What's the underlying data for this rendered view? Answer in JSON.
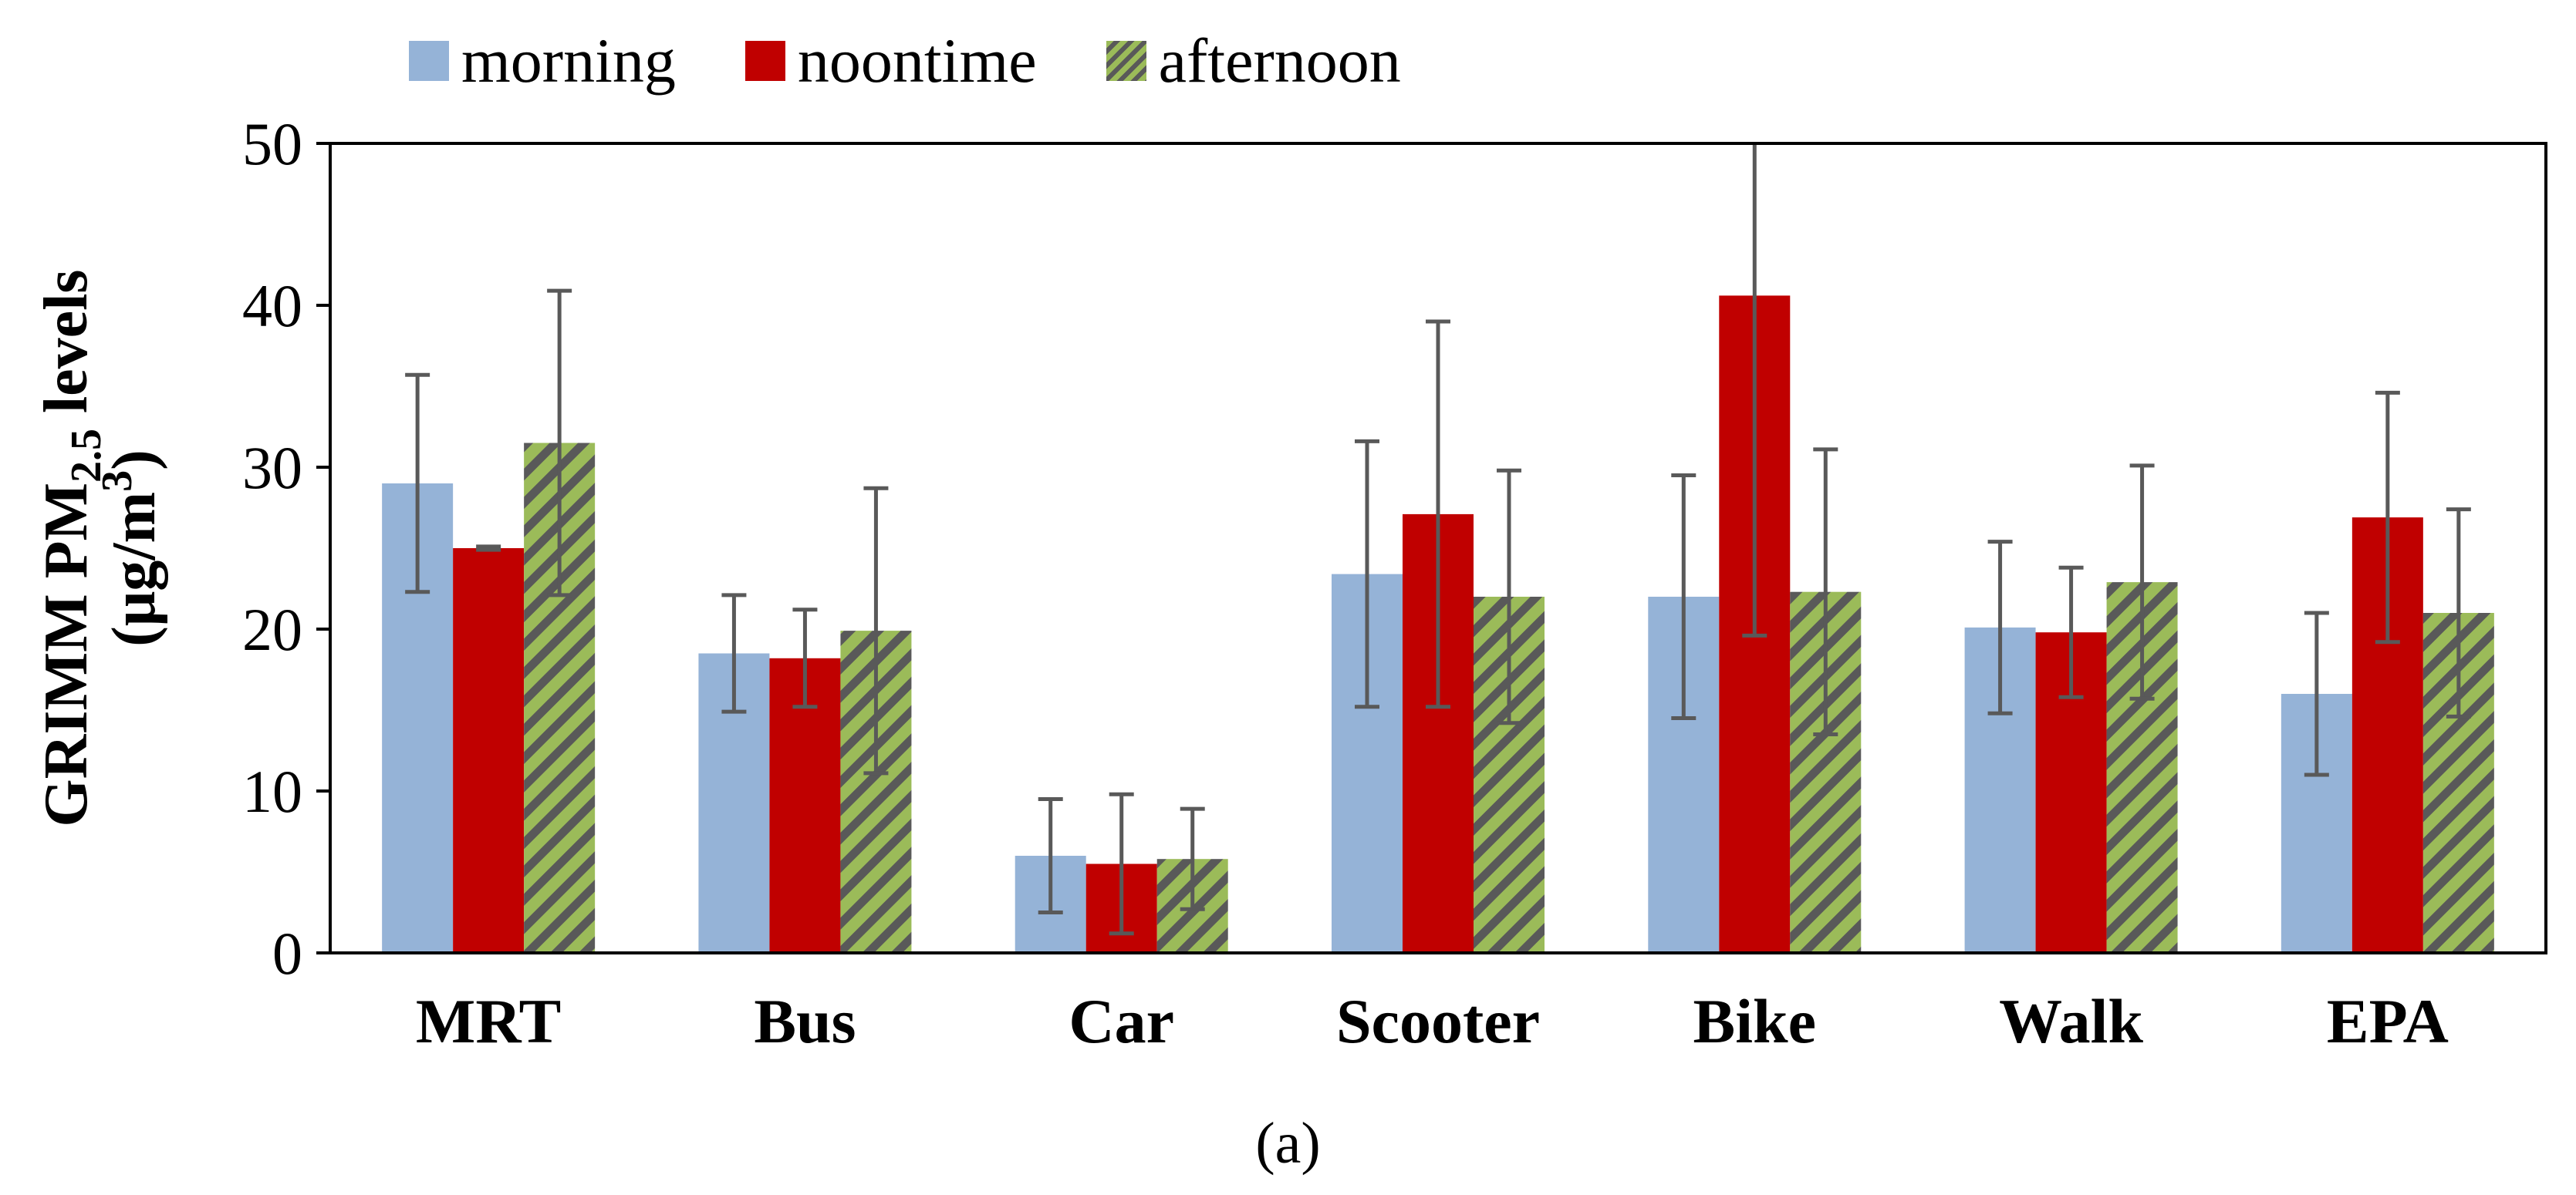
{
  "chart_data": {
    "type": "bar",
    "title": "",
    "caption": "(a)",
    "ylabel_line1": "GRIMM PM",
    "ylabel_sub": "2.5",
    "ylabel_line1_end": " levels",
    "ylabel_line2": "(μg/m",
    "ylabel_sup": "3",
    "ylabel_line2_end": ")",
    "xlabel": "",
    "ylim": [
      0,
      50
    ],
    "yticks": [
      0,
      10,
      20,
      30,
      40,
      50
    ],
    "categories": [
      "MRT",
      "Bus",
      "Car",
      "Scooter",
      "Bike",
      "Walk",
      "EPA"
    ],
    "series": [
      {
        "name": "morning",
        "color": "#95b3d7",
        "pattern": "solid",
        "values": [
          29.0,
          18.5,
          6.0,
          23.4,
          22.0,
          20.1,
          16.0
        ],
        "errors": [
          6.7,
          3.6,
          3.5,
          8.2,
          7.5,
          5.3,
          5.0
        ]
      },
      {
        "name": "noontime",
        "color": "#c00000",
        "pattern": "solid",
        "values": [
          25.0,
          18.2,
          5.5,
          27.1,
          40.6,
          19.8,
          26.9
        ],
        "errors": [
          0.1,
          3.0,
          4.3,
          11.9,
          21.0,
          4.0,
          7.7
        ]
      },
      {
        "name": "afternoon",
        "color": "#9bbb59",
        "pattern": "hatch",
        "values": [
          31.5,
          19.9,
          5.8,
          22.0,
          22.3,
          22.9,
          21.0
        ],
        "errors": [
          9.4,
          8.8,
          3.1,
          7.8,
          8.8,
          7.2,
          6.4
        ]
      }
    ],
    "colors": {
      "axis": "#000000",
      "errorbar": "#595959",
      "hatch": "#595959"
    },
    "legend_position": "top-left"
  }
}
